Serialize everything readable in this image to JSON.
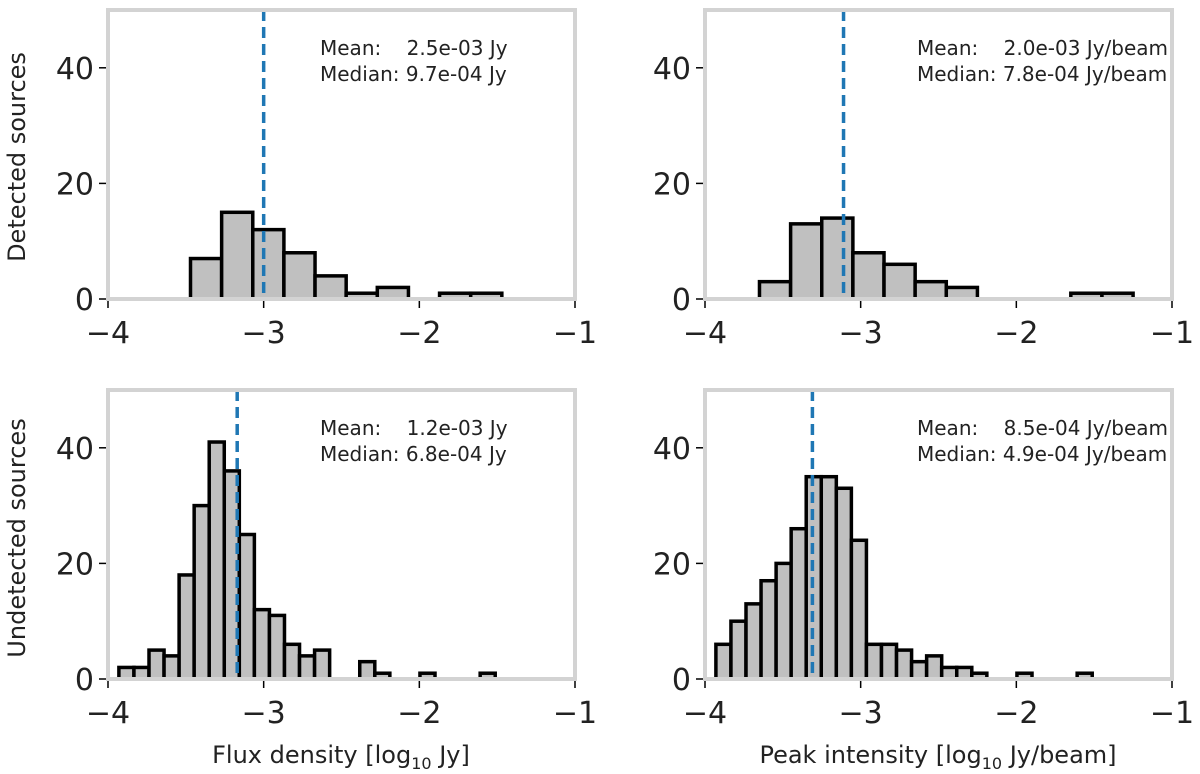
{
  "row_labels": [
    "Detected sources",
    "Undetected sources"
  ],
  "col_labels": [
    "Flux density [log",
    "Peak intensity [log"
  ],
  "col_label_subs": [
    "10",
    "10"
  ],
  "col_label_units": [
    " Jy]",
    " Jy/beam]"
  ],
  "chart_data": [
    {
      "type": "bar",
      "title": "",
      "xlabel": "",
      "ylabel": "Detected sources",
      "xlim": [
        -4,
        -1
      ],
      "ylim": [
        0,
        50
      ],
      "xticks": [
        -4,
        -3,
        -2,
        -1
      ],
      "yticks": [
        0,
        20,
        40
      ],
      "bin_width": 0.2,
      "bin_edges_start": -3.47,
      "values": [
        7,
        15,
        12,
        8,
        4,
        1,
        2,
        0,
        1,
        1
      ],
      "mean_line_x": -3.0,
      "annotation": [
        "Mean:    2.5e-03 Jy",
        "Median: 9.7e-04 Jy"
      ],
      "grid": false
    },
    {
      "type": "bar",
      "title": "",
      "xlabel": "",
      "ylabel": "",
      "xlim": [
        -4,
        -1
      ],
      "ylim": [
        0,
        50
      ],
      "xticks": [
        -4,
        -3,
        -2,
        -1
      ],
      "yticks": [
        0,
        20,
        40
      ],
      "bin_width": 0.2,
      "bin_edges_start": -3.65,
      "values": [
        3,
        13,
        14,
        8,
        6,
        3,
        2,
        0,
        0,
        0,
        1,
        1
      ],
      "mean_line_x": -3.11,
      "annotation": [
        "Mean:    2.0e-03 Jy/beam",
        "Median: 7.8e-04 Jy/beam"
      ],
      "grid": false
    },
    {
      "type": "bar",
      "title": "",
      "xlabel": "Flux density [log10 Jy]",
      "ylabel": "Undetected sources",
      "xlim": [
        -4,
        -1
      ],
      "ylim": [
        0,
        50
      ],
      "xticks": [
        -4,
        -3,
        -2,
        -1
      ],
      "yticks": [
        0,
        20,
        40
      ],
      "bin_width": 0.0967,
      "bin_edges_start": -3.93,
      "values": [
        2,
        2,
        5,
        4,
        18,
        30,
        41,
        36,
        25,
        12,
        11,
        6,
        4,
        5,
        0,
        0,
        3,
        1,
        0,
        0,
        1,
        0,
        0,
        0,
        1
      ],
      "mean_line_x": -3.17,
      "annotation": [
        "Mean:    1.2e-03 Jy",
        "Median: 6.8e-04 Jy"
      ],
      "grid": false
    },
    {
      "type": "bar",
      "title": "",
      "xlabel": "Peak intensity [log10 Jy/beam]",
      "ylabel": "",
      "xlim": [
        -4,
        -1
      ],
      "ylim": [
        0,
        50
      ],
      "xticks": [
        -4,
        -3,
        -2,
        -1
      ],
      "yticks": [
        0,
        20,
        40
      ],
      "bin_width": 0.0967,
      "bin_edges_start": -3.93,
      "values": [
        6,
        10,
        13,
        17,
        20,
        26,
        35,
        35,
        33,
        24,
        6,
        6,
        5,
        3,
        4,
        2,
        2,
        1,
        0,
        0,
        1,
        0,
        0,
        0,
        1
      ],
      "mean_line_x": -3.31,
      "annotation": [
        "Mean:    8.5e-04 Jy/beam",
        "Median: 4.9e-04 Jy/beam"
      ],
      "grid": false
    }
  ]
}
